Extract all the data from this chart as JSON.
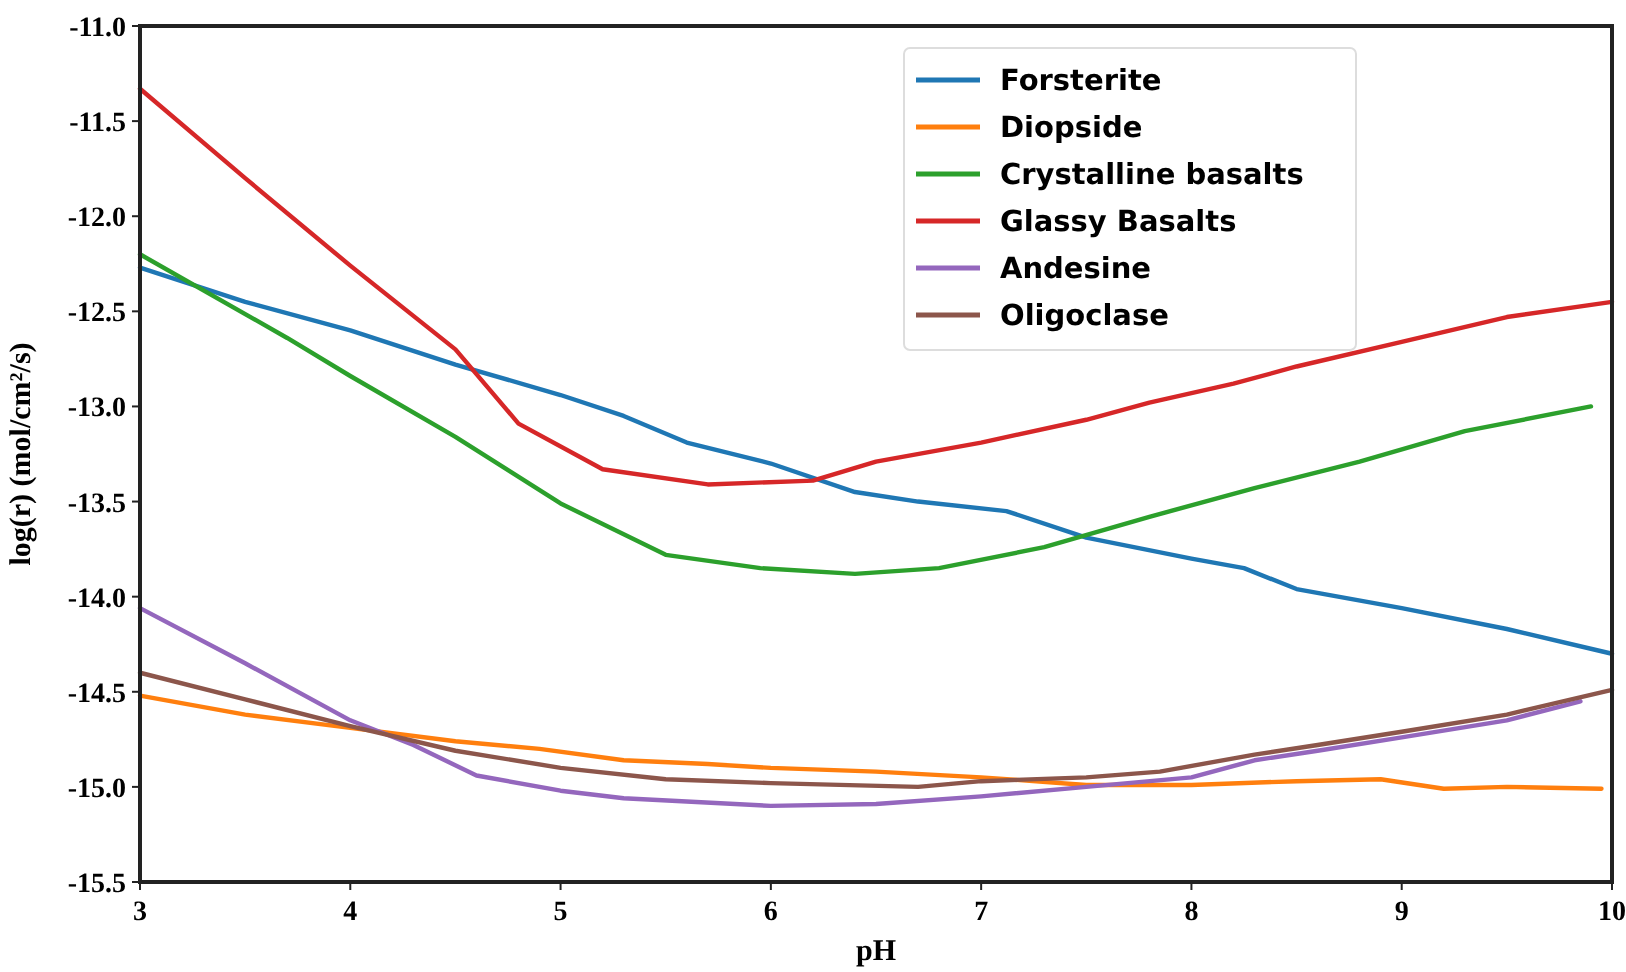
{
  "chart_data": {
    "type": "line",
    "xlabel": "pH",
    "ylabel": "log(r) (mol/cm²/s)",
    "xlim": [
      3,
      10
    ],
    "ylim": [
      -15.5,
      -11.0
    ],
    "xticks": [
      3,
      4,
      5,
      6,
      7,
      8,
      9,
      10
    ],
    "yticks": [
      {
        "value": -15.5,
        "label": "-15.5"
      },
      {
        "value": -15.0,
        "label": "-15.0"
      },
      {
        "value": -14.5,
        "label": "-14.5"
      },
      {
        "value": -14.0,
        "label": "-14.0"
      },
      {
        "value": -13.5,
        "label": "-13.5"
      },
      {
        "value": -13.0,
        "label": "-13.0"
      },
      {
        "value": -12.5,
        "label": "-12.5"
      },
      {
        "value": -12.0,
        "label": "-12.0"
      },
      {
        "value": -11.5,
        "label": "-11.5"
      },
      {
        "value": -11.0,
        "label": "-11.0"
      }
    ],
    "grid": false,
    "legend": "top right",
    "line_style": "solid",
    "marker": "none",
    "series": [
      {
        "name": "Forsterite",
        "color": "#1f77b4",
        "x": [
          3,
          3.5,
          4,
          4.5,
          5,
          5.3,
          5.6,
          6,
          6.4,
          6.7,
          7.12,
          7.5,
          8,
          8.25,
          8.5,
          9,
          9.5,
          10
        ],
        "values": [
          -12.27,
          -12.45,
          -12.6,
          -12.78,
          -12.94,
          -13.05,
          -13.19,
          -13.3,
          -13.45,
          -13.5,
          -13.55,
          -13.69,
          -13.8,
          -13.85,
          -13.96,
          -14.06,
          -14.17,
          -14.3
        ]
      },
      {
        "name": "Diopside",
        "color": "#ff7f0e",
        "x": [
          3,
          3.5,
          4,
          4.5,
          4.9,
          5.3,
          5.7,
          6,
          6.5,
          7,
          7.5,
          8,
          8.5,
          8.9,
          9.2,
          9.5,
          9.95
        ],
        "values": [
          -14.52,
          -14.62,
          -14.69,
          -14.76,
          -14.8,
          -14.86,
          -14.88,
          -14.9,
          -14.92,
          -14.95,
          -14.99,
          -14.99,
          -14.97,
          -14.96,
          -15.01,
          -15.0,
          -15.01
        ]
      },
      {
        "name": "Crystalline basalts",
        "color": "#2ca02c",
        "x": [
          3,
          3.7,
          4,
          4.5,
          5,
          5.5,
          5.95,
          6.4,
          6.8,
          7.3,
          7.8,
          8.3,
          8.8,
          9.3,
          9.9
        ],
        "values": [
          -12.2,
          -12.64,
          -12.84,
          -13.16,
          -13.51,
          -13.78,
          -13.85,
          -13.88,
          -13.85,
          -13.74,
          -13.58,
          -13.43,
          -13.29,
          -13.13,
          -13.0
        ]
      },
      {
        "name": "Glassy Basalts",
        "color": "#d62728",
        "x": [
          3,
          3.5,
          4,
          4.5,
          4.8,
          5.2,
          5.7,
          6.2,
          6.5,
          7,
          7.5,
          7.8,
          8.2,
          8.5,
          9,
          9.5,
          10
        ],
        "values": [
          -11.33,
          -11.8,
          -12.26,
          -12.7,
          -13.09,
          -13.33,
          -13.41,
          -13.39,
          -13.29,
          -13.19,
          -13.07,
          -12.98,
          -12.88,
          -12.79,
          -12.66,
          -12.53,
          -12.45
        ]
      },
      {
        "name": "Andesine",
        "color": "#9467bd",
        "x": [
          3,
          3.5,
          4,
          4.3,
          4.6,
          5,
          5.3,
          6,
          6.5,
          7,
          7.5,
          8,
          8.3,
          8.6,
          9,
          9.5,
          9.85
        ],
        "values": [
          -14.06,
          -14.35,
          -14.65,
          -14.78,
          -14.94,
          -15.02,
          -15.06,
          -15.1,
          -15.09,
          -15.05,
          -15.0,
          -14.95,
          -14.86,
          -14.81,
          -14.74,
          -14.65,
          -14.55
        ]
      },
      {
        "name": "Oligoclase",
        "color": "#8c564b",
        "x": [
          3,
          3.5,
          4,
          4.5,
          5,
          5.5,
          6,
          6.7,
          7,
          7.5,
          7.85,
          8.3,
          8.6,
          9,
          9.5,
          10
        ],
        "values": [
          -14.4,
          -14.54,
          -14.68,
          -14.81,
          -14.9,
          -14.96,
          -14.98,
          -15.0,
          -14.97,
          -14.95,
          -14.92,
          -14.83,
          -14.78,
          -14.71,
          -14.62,
          -14.49
        ]
      }
    ]
  }
}
